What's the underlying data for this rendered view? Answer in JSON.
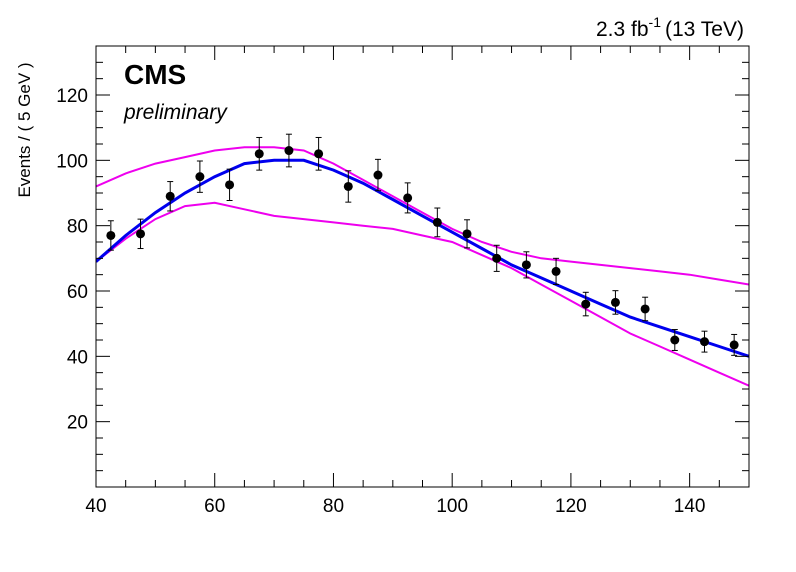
{
  "chart_data": {
    "type": "scatter",
    "title": "",
    "xlabel": "",
    "ylabel": "Events / ( 5 GeV )",
    "xlim": [
      40,
      150
    ],
    "ylim": [
      0,
      135
    ],
    "xticks": [
      "40",
      "60",
      "80",
      "100",
      "120",
      "140"
    ],
    "yticks": [
      "20",
      "40",
      "60",
      "80",
      "100",
      "120"
    ],
    "annotations": {
      "experiment": "CMS",
      "status": "preliminary",
      "lumi_value": "2.3 fb",
      "lumi_exponent": "-1",
      "energy": "(13 TeV)"
    },
    "colors": {
      "data": "#000000",
      "fit": "#0000ee",
      "band": "#ee00ee"
    },
    "series": [
      {
        "kind": "points",
        "x": [
          42.5,
          47.5,
          52.5,
          57.5,
          62.5,
          67.5,
          72.5,
          77.5,
          82.5,
          87.5,
          92.5,
          97.5,
          102.5,
          107.5,
          112.5,
          117.5,
          122.5,
          127.5,
          132.5,
          137.5,
          142.5,
          147.5
        ],
        "y": [
          77,
          77.5,
          89,
          95,
          92.5,
          102,
          103,
          102,
          92,
          95.5,
          88.5,
          81,
          77.5,
          70,
          68,
          66,
          56,
          56.5,
          54.5,
          45,
          44.5,
          43.5
        ],
        "yerr": [
          4.5,
          4.5,
          4.5,
          4.8,
          4.8,
          5,
          5,
          5,
          4.8,
          4.8,
          4.6,
          4.4,
          4.3,
          4,
          4,
          4,
          3.6,
          3.6,
          3.6,
          3.2,
          3.2,
          3.2
        ]
      },
      {
        "kind": "fit",
        "x": [
          40,
          45,
          50,
          55,
          60,
          65,
          70,
          75,
          80,
          85,
          90,
          95,
          100,
          105,
          110,
          115,
          120,
          125,
          130,
          135,
          140,
          145,
          150
        ],
        "y": [
          69,
          77,
          84,
          90,
          95,
          99,
          100,
          100,
          97,
          93,
          88,
          83,
          78,
          73,
          68,
          64,
          60,
          56,
          52,
          49,
          46,
          43,
          40
        ]
      },
      {
        "kind": "band-upper",
        "x": [
          40,
          45,
          50,
          55,
          60,
          65,
          70,
          75,
          80,
          85,
          90,
          95,
          100,
          105,
          110,
          115,
          120,
          125,
          130,
          135,
          140,
          145,
          150
        ],
        "y": [
          92,
          96,
          99,
          101,
          103,
          104,
          104,
          103,
          99,
          94,
          89,
          84,
          79,
          75,
          72,
          70,
          69,
          68,
          67,
          66,
          65,
          63.5,
          62
        ]
      },
      {
        "kind": "band-lower",
        "x": [
          40,
          45,
          50,
          55,
          60,
          65,
          70,
          75,
          80,
          85,
          90,
          95,
          100,
          105,
          110,
          115,
          120,
          125,
          130,
          135,
          140,
          145,
          150
        ],
        "y": [
          69,
          76,
          82,
          86,
          87,
          85,
          83,
          82,
          81,
          80,
          79,
          77,
          75,
          71,
          67,
          62,
          57,
          52,
          47,
          43,
          39,
          35,
          31
        ]
      }
    ]
  }
}
